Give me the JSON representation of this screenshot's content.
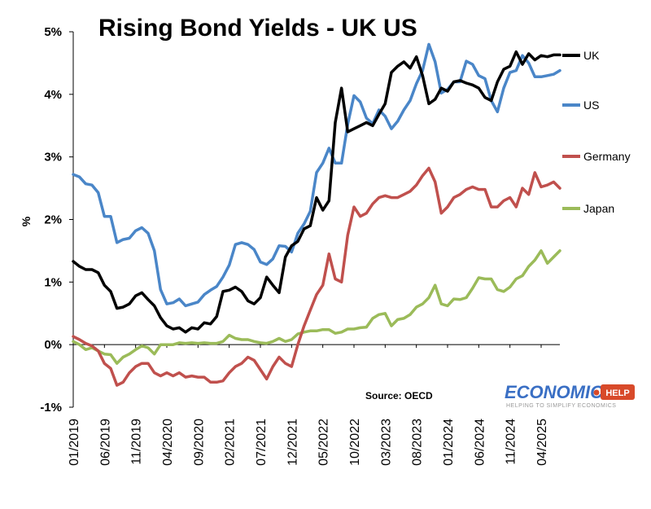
{
  "chart_data": {
    "type": "line",
    "title": "Rising Bond Yields - UK US",
    "ylabel": "%",
    "xlabel": "",
    "source": "Source: OECD",
    "ylim": [
      -1,
      5
    ],
    "yticks": [
      -1,
      0,
      1,
      2,
      3,
      4,
      5
    ],
    "ytick_labels": [
      "-1%",
      "0%",
      "1%",
      "2%",
      "3%",
      "4%",
      "5%"
    ],
    "xlim": [
      "2019-01",
      "2025-07"
    ],
    "xtick_labels": [
      "01/2019",
      "06/2019",
      "11/2019",
      "04/2020",
      "09/2020",
      "02/2021",
      "07/2021",
      "12/2021",
      "05/2022",
      "10/2022",
      "03/2023",
      "08/2023",
      "01/2024",
      "06/2024",
      "11/2024",
      "04/2025"
    ],
    "legend_position": "right",
    "grid": false,
    "colors": {
      "UK": "#000000",
      "US": "#4a86c8",
      "Germany": "#c0504d",
      "Japan": "#9bbb59"
    },
    "x": [
      "2019-01",
      "2019-02",
      "2019-03",
      "2019-04",
      "2019-05",
      "2019-06",
      "2019-07",
      "2019-08",
      "2019-09",
      "2019-10",
      "2019-11",
      "2019-12",
      "2020-01",
      "2020-02",
      "2020-03",
      "2020-04",
      "2020-05",
      "2020-06",
      "2020-07",
      "2020-08",
      "2020-09",
      "2020-10",
      "2020-11",
      "2020-12",
      "2021-01",
      "2021-02",
      "2021-03",
      "2021-04",
      "2021-05",
      "2021-06",
      "2021-07",
      "2021-08",
      "2021-09",
      "2021-10",
      "2021-11",
      "2021-12",
      "2022-01",
      "2022-02",
      "2022-03",
      "2022-04",
      "2022-05",
      "2022-06",
      "2022-07",
      "2022-08",
      "2022-09",
      "2022-10",
      "2022-11",
      "2022-12",
      "2023-01",
      "2023-02",
      "2023-03",
      "2023-04",
      "2023-05",
      "2023-06",
      "2023-07",
      "2023-08",
      "2023-09",
      "2023-10",
      "2023-11",
      "2023-12",
      "2024-01",
      "2024-02",
      "2024-03",
      "2024-04",
      "2024-05",
      "2024-06",
      "2024-07",
      "2024-08",
      "2024-09",
      "2024-10",
      "2024-11",
      "2024-12",
      "2025-01",
      "2025-02",
      "2025-03",
      "2025-04",
      "2025-05",
      "2025-06",
      "2025-07"
    ],
    "series": [
      {
        "name": "UK",
        "values": [
          1.33,
          1.25,
          1.2,
          1.2,
          1.15,
          0.95,
          0.85,
          0.58,
          0.6,
          0.65,
          0.78,
          0.83,
          0.72,
          0.62,
          0.43,
          0.3,
          0.25,
          0.27,
          0.2,
          0.27,
          0.25,
          0.35,
          0.33,
          0.45,
          0.85,
          0.87,
          0.92,
          0.85,
          0.7,
          0.65,
          0.75,
          1.08,
          0.95,
          0.83,
          1.4,
          1.58,
          1.65,
          1.85,
          1.9,
          2.35,
          2.15,
          2.3,
          3.55,
          4.1,
          3.4,
          3.45,
          3.5,
          3.55,
          3.5,
          3.68,
          3.85,
          4.35,
          4.45,
          4.52,
          4.42,
          4.6,
          4.3,
          3.85,
          3.92,
          4.1,
          4.05,
          4.2,
          4.22,
          4.18,
          4.15,
          4.1,
          3.95,
          3.9,
          4.2,
          4.4,
          4.45,
          4.68,
          4.48,
          4.65,
          4.55,
          4.62,
          4.6,
          4.63,
          4.63
        ]
      },
      {
        "name": "US",
        "values": [
          2.72,
          2.68,
          2.57,
          2.55,
          2.43,
          2.05,
          2.05,
          1.63,
          1.68,
          1.7,
          1.82,
          1.87,
          1.78,
          1.5,
          0.88,
          0.65,
          0.67,
          0.73,
          0.62,
          0.65,
          0.68,
          0.8,
          0.87,
          0.93,
          1.08,
          1.27,
          1.6,
          1.63,
          1.6,
          1.52,
          1.32,
          1.28,
          1.37,
          1.58,
          1.57,
          1.48,
          1.78,
          1.93,
          2.13,
          2.75,
          2.9,
          3.14,
          2.9,
          2.9,
          3.52,
          3.98,
          3.88,
          3.62,
          3.53,
          3.75,
          3.65,
          3.45,
          3.57,
          3.75,
          3.9,
          4.17,
          4.38,
          4.8,
          4.52,
          4.02,
          4.08,
          4.2,
          4.2,
          4.53,
          4.48,
          4.3,
          4.25,
          3.9,
          3.72,
          4.1,
          4.35,
          4.38,
          4.62,
          4.5,
          4.28,
          4.28,
          4.3,
          4.32,
          4.38
        ]
      },
      {
        "name": "Germany",
        "values": [
          0.13,
          0.08,
          0.02,
          -0.02,
          -0.1,
          -0.3,
          -0.38,
          -0.65,
          -0.6,
          -0.45,
          -0.35,
          -0.3,
          -0.3,
          -0.45,
          -0.5,
          -0.45,
          -0.5,
          -0.45,
          -0.52,
          -0.5,
          -0.52,
          -0.52,
          -0.6,
          -0.6,
          -0.58,
          -0.45,
          -0.35,
          -0.3,
          -0.2,
          -0.25,
          -0.4,
          -0.55,
          -0.35,
          -0.2,
          -0.3,
          -0.35,
          0.0,
          0.3,
          0.55,
          0.8,
          0.95,
          1.45,
          1.05,
          1.0,
          1.75,
          2.2,
          2.05,
          2.1,
          2.25,
          2.35,
          2.38,
          2.35,
          2.35,
          2.4,
          2.45,
          2.55,
          2.7,
          2.82,
          2.6,
          2.1,
          2.2,
          2.35,
          2.4,
          2.48,
          2.52,
          2.48,
          2.48,
          2.2,
          2.2,
          2.3,
          2.35,
          2.2,
          2.5,
          2.4,
          2.75,
          2.52,
          2.55,
          2.6,
          2.5
        ]
      },
      {
        "name": "Japan",
        "values": [
          0.05,
          0.0,
          -0.08,
          -0.05,
          -0.1,
          -0.15,
          -0.16,
          -0.3,
          -0.2,
          -0.15,
          -0.08,
          -0.02,
          -0.05,
          -0.15,
          0.0,
          0.0,
          0.0,
          0.03,
          0.02,
          0.03,
          0.02,
          0.03,
          0.02,
          0.02,
          0.05,
          0.15,
          0.1,
          0.08,
          0.08,
          0.05,
          0.03,
          0.02,
          0.05,
          0.1,
          0.05,
          0.08,
          0.17,
          0.2,
          0.22,
          0.22,
          0.24,
          0.24,
          0.18,
          0.2,
          0.25,
          0.25,
          0.27,
          0.28,
          0.42,
          0.48,
          0.5,
          0.3,
          0.4,
          0.42,
          0.48,
          0.6,
          0.65,
          0.75,
          0.95,
          0.65,
          0.62,
          0.73,
          0.72,
          0.75,
          0.9,
          1.07,
          1.05,
          1.05,
          0.88,
          0.85,
          0.92,
          1.05,
          1.1,
          1.25,
          1.35,
          1.5,
          1.3,
          1.4,
          1.5
        ]
      }
    ]
  },
  "logo": {
    "name": "ECONOMICS",
    "badge": "HELP",
    "tagline": "HELPING TO SIMPLIFY ECONOMICS"
  }
}
